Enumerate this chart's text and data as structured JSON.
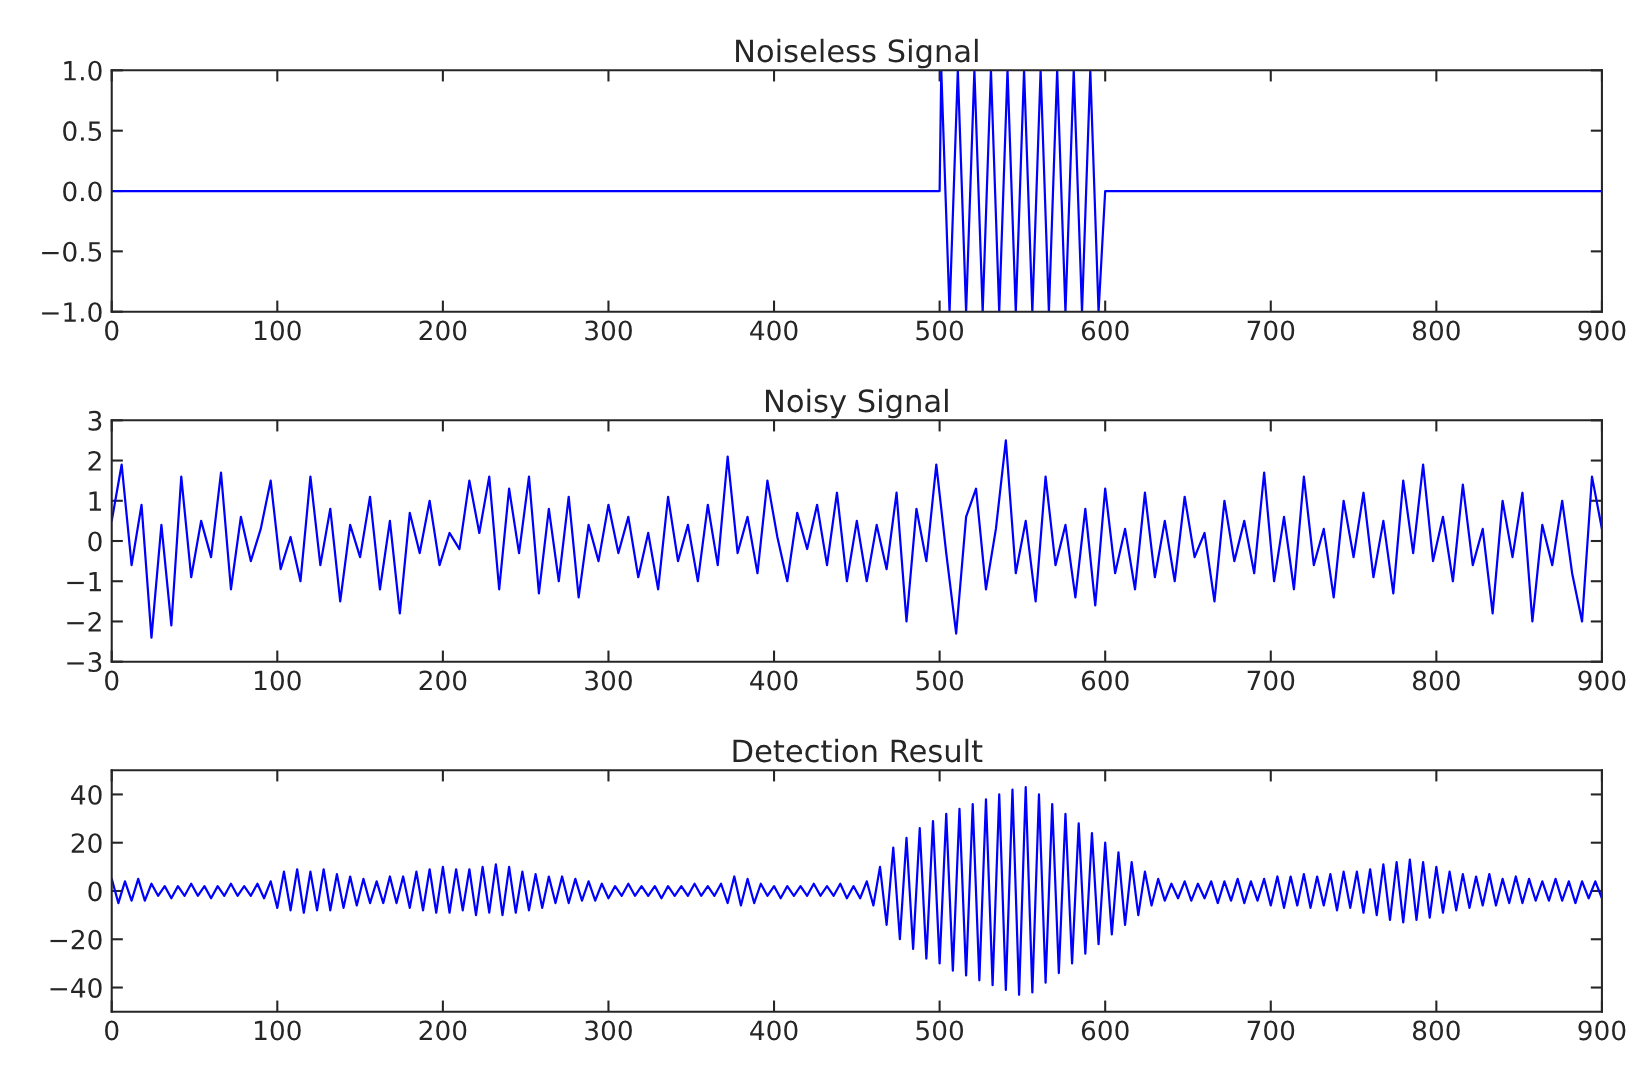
{
  "chart_data": [
    {
      "type": "line",
      "title": "Noiseless Signal",
      "xlim": [
        0,
        900
      ],
      "ylim": [
        -1.0,
        1.0
      ],
      "xticks": [
        0,
        100,
        200,
        300,
        400,
        500,
        600,
        700,
        800,
        900
      ],
      "yticks": [
        {
          "value": -1.0,
          "label": "−1.0"
        },
        {
          "value": -0.5,
          "label": "−0.5"
        },
        {
          "value": 0.0,
          "label": "0.0"
        },
        0.5,
        {
          "value": 1.0,
          "label": "1.0"
        }
      ],
      "grid": false,
      "series": [
        {
          "color": "#0000ff",
          "x": [
            0,
            500,
            501,
            506,
            511,
            516,
            521,
            526,
            531,
            536,
            541,
            546,
            551,
            556,
            561,
            566,
            571,
            576,
            581,
            586,
            591,
            596,
            600,
            900
          ],
          "values": [
            0,
            0,
            1,
            -1,
            1,
            -1,
            1,
            -1,
            1,
            -1,
            1,
            -1,
            1,
            -1,
            1,
            -1,
            1,
            -1,
            1,
            -1,
            1,
            -1,
            0,
            0
          ]
        }
      ]
    },
    {
      "type": "line",
      "title": "Noisy Signal",
      "xlim": [
        0,
        900
      ],
      "ylim": [
        -3,
        3
      ],
      "xticks": [
        0,
        100,
        200,
        300,
        400,
        500,
        600,
        700,
        800,
        900
      ],
      "yticks": [
        {
          "value": -3,
          "label": "−3"
        },
        {
          "value": -2,
          "label": "−2"
        },
        {
          "value": -1,
          "label": "−1"
        },
        0,
        1,
        2,
        3
      ],
      "grid": false,
      "series": [
        {
          "color": "#0000ff",
          "x": [
            0,
            6,
            12,
            18,
            24,
            30,
            36,
            42,
            48,
            54,
            60,
            66,
            72,
            78,
            84,
            90,
            96,
            102,
            108,
            114,
            120,
            126,
            132,
            138,
            144,
            150,
            156,
            162,
            168,
            174,
            180,
            186,
            192,
            198,
            204,
            210,
            216,
            222,
            228,
            234,
            240,
            246,
            252,
            258,
            264,
            270,
            276,
            282,
            288,
            294,
            300,
            306,
            312,
            318,
            324,
            330,
            336,
            342,
            348,
            354,
            360,
            366,
            372,
            378,
            384,
            390,
            396,
            402,
            408,
            414,
            420,
            426,
            432,
            438,
            444,
            450,
            456,
            462,
            468,
            474,
            480,
            486,
            492,
            498,
            504,
            510,
            516,
            522,
            528,
            534,
            540,
            546,
            552,
            558,
            564,
            570,
            576,
            582,
            588,
            594,
            600,
            606,
            612,
            618,
            624,
            630,
            636,
            642,
            648,
            654,
            660,
            666,
            672,
            678,
            684,
            690,
            696,
            702,
            708,
            714,
            720,
            726,
            732,
            738,
            744,
            750,
            756,
            762,
            768,
            774,
            780,
            786,
            792,
            798,
            804,
            810,
            816,
            822,
            828,
            834,
            840,
            846,
            852,
            858,
            864,
            870,
            876,
            882,
            888,
            894,
            900
          ],
          "values": [
            0.5,
            1.9,
            -0.6,
            0.9,
            -2.4,
            0.4,
            -2.1,
            1.6,
            -0.9,
            0.5,
            -0.4,
            1.7,
            -1.2,
            0.6,
            -0.5,
            0.3,
            1.5,
            -0.7,
            0.1,
            -1.0,
            1.6,
            -0.6,
            0.8,
            -1.5,
            0.4,
            -0.4,
            1.1,
            -1.2,
            0.5,
            -1.8,
            0.7,
            -0.3,
            1.0,
            -0.6,
            0.2,
            -0.2,
            1.5,
            0.2,
            1.6,
            -1.2,
            1.3,
            -0.3,
            1.6,
            -1.3,
            0.8,
            -1.0,
            1.1,
            -1.4,
            0.4,
            -0.5,
            0.9,
            -0.3,
            0.6,
            -0.9,
            0.2,
            -1.2,
            1.1,
            -0.5,
            0.4,
            -1.0,
            0.9,
            -0.6,
            2.1,
            -0.3,
            0.6,
            -0.8,
            1.5,
            0.1,
            -1.0,
            0.7,
            -0.2,
            0.9,
            -0.6,
            1.2,
            -1.0,
            0.5,
            -1.0,
            0.4,
            -0.7,
            1.2,
            -2.0,
            0.8,
            -0.5,
            1.9,
            -0.3,
            -2.3,
            0.6,
            1.3,
            -1.2,
            0.3,
            2.5,
            -0.8,
            0.5,
            -1.5,
            1.6,
            -0.6,
            0.4,
            -1.4,
            0.8,
            -1.6,
            1.3,
            -0.8,
            0.3,
            -1.2,
            1.2,
            -0.9,
            0.5,
            -1.0,
            1.1,
            -0.4,
            0.2,
            -1.5,
            1.0,
            -0.5,
            0.5,
            -0.8,
            1.7,
            -1.0,
            0.6,
            -1.2,
            1.6,
            -0.6,
            0.3,
            -1.4,
            1.0,
            -0.4,
            1.2,
            -0.9,
            0.5,
            -1.3,
            1.5,
            -0.3,
            1.9,
            -0.5,
            0.6,
            -1.0,
            1.4,
            -0.6,
            0.3,
            -1.8,
            1.0,
            -0.4,
            1.2,
            -2.0,
            0.4,
            -0.6,
            1.0,
            -0.8,
            -2.0,
            1.6,
            0.3
          ]
        }
      ]
    },
    {
      "type": "line",
      "title": "Detection Result",
      "xlim": [
        0,
        900
      ],
      "ylim": [
        -50,
        50
      ],
      "xticks": [
        0,
        100,
        200,
        300,
        400,
        500,
        600,
        700,
        800,
        900
      ],
      "yticks": [
        {
          "value": -40,
          "label": "−40"
        },
        {
          "value": -20,
          "label": "−20"
        },
        0,
        20,
        40
      ],
      "grid": false,
      "series": [
        {
          "color": "#0000ff",
          "x": [
            0,
            4,
            8,
            12,
            16,
            20,
            24,
            28,
            32,
            36,
            40,
            44,
            48,
            52,
            56,
            60,
            64,
            68,
            72,
            76,
            80,
            84,
            88,
            92,
            96,
            100,
            104,
            108,
            112,
            116,
            120,
            124,
            128,
            132,
            136,
            140,
            144,
            148,
            152,
            156,
            160,
            164,
            168,
            172,
            176,
            180,
            184,
            188,
            192,
            196,
            200,
            204,
            208,
            212,
            216,
            220,
            224,
            228,
            232,
            236,
            240,
            244,
            248,
            252,
            256,
            260,
            264,
            268,
            272,
            276,
            280,
            284,
            288,
            292,
            296,
            300,
            304,
            308,
            312,
            316,
            320,
            324,
            328,
            332,
            336,
            340,
            344,
            348,
            352,
            356,
            360,
            364,
            368,
            372,
            376,
            380,
            384,
            388,
            392,
            396,
            400,
            404,
            408,
            412,
            416,
            420,
            424,
            428,
            432,
            436,
            440,
            444,
            448,
            452,
            456,
            460,
            464,
            468,
            472,
            476,
            480,
            484,
            488,
            492,
            496,
            500,
            504,
            508,
            512,
            516,
            520,
            524,
            528,
            532,
            536,
            540,
            544,
            548,
            552,
            556,
            560,
            564,
            568,
            572,
            576,
            580,
            584,
            588,
            592,
            596,
            600,
            604,
            608,
            612,
            616,
            620,
            624,
            628,
            632,
            636,
            640,
            644,
            648,
            652,
            656,
            660,
            664,
            668,
            672,
            676,
            680,
            684,
            688,
            692,
            696,
            700,
            704,
            708,
            712,
            716,
            720,
            724,
            728,
            732,
            736,
            740,
            744,
            748,
            752,
            756,
            760,
            764,
            768,
            772,
            776,
            780,
            784,
            788,
            792,
            796,
            800,
            804,
            808,
            812,
            816,
            820,
            824,
            828,
            832,
            836,
            840,
            844,
            848,
            852,
            856,
            860,
            864,
            868,
            872,
            876,
            880,
            884,
            888,
            892,
            896,
            900
          ],
          "values": [
            5,
            -5,
            4,
            -4,
            5,
            -4,
            3,
            -2,
            2,
            -3,
            2,
            -2,
            3,
            -2,
            2,
            -3,
            2,
            -2,
            3,
            -2,
            2,
            -2,
            3,
            -3,
            4,
            -7,
            8,
            -8,
            9,
            -9,
            8,
            -8,
            9,
            -8,
            7,
            -7,
            6,
            -6,
            5,
            -5,
            4,
            -5,
            6,
            -5,
            6,
            -7,
            8,
            -8,
            9,
            -9,
            10,
            -9,
            9,
            -8,
            9,
            -10,
            10,
            -9,
            11,
            -10,
            10,
            -9,
            8,
            -8,
            7,
            -7,
            6,
            -5,
            6,
            -5,
            5,
            -4,
            4,
            -4,
            3,
            -3,
            2,
            -2,
            3,
            -2,
            2,
            -2,
            2,
            -3,
            2,
            -2,
            2,
            -2,
            3,
            -2,
            2,
            -2,
            3,
            -5,
            6,
            -6,
            5,
            -5,
            3,
            -2,
            2,
            -3,
            2,
            -2,
            2,
            -2,
            3,
            -2,
            2,
            -2,
            3,
            -3,
            2,
            -3,
            4,
            -6,
            10,
            -14,
            18,
            -20,
            22,
            -24,
            26,
            -28,
            29,
            -30,
            32,
            -33,
            34,
            -35,
            36,
            -37,
            38,
            -39,
            40,
            -41,
            42,
            -43,
            43,
            -42,
            40,
            -38,
            36,
            -34,
            32,
            -30,
            28,
            -26,
            24,
            -22,
            20,
            -18,
            16,
            -14,
            12,
            -10,
            8,
            -6,
            5,
            -4,
            3,
            -3,
            4,
            -4,
            3,
            -3,
            4,
            -5,
            4,
            -4,
            5,
            -5,
            4,
            -4,
            5,
            -6,
            6,
            -7,
            6,
            -6,
            7,
            -7,
            6,
            -6,
            7,
            -8,
            8,
            -7,
            8,
            -9,
            9,
            -10,
            11,
            -12,
            12,
            -13,
            13,
            -12,
            12,
            -11,
            10,
            -9,
            8,
            -8,
            7,
            -7,
            6,
            -6,
            7,
            -6,
            5,
            -5,
            6,
            -5,
            5,
            -4,
            4,
            -4,
            5,
            -4,
            4,
            -5,
            4,
            -3,
            4,
            -3
          ]
        }
      ]
    }
  ]
}
